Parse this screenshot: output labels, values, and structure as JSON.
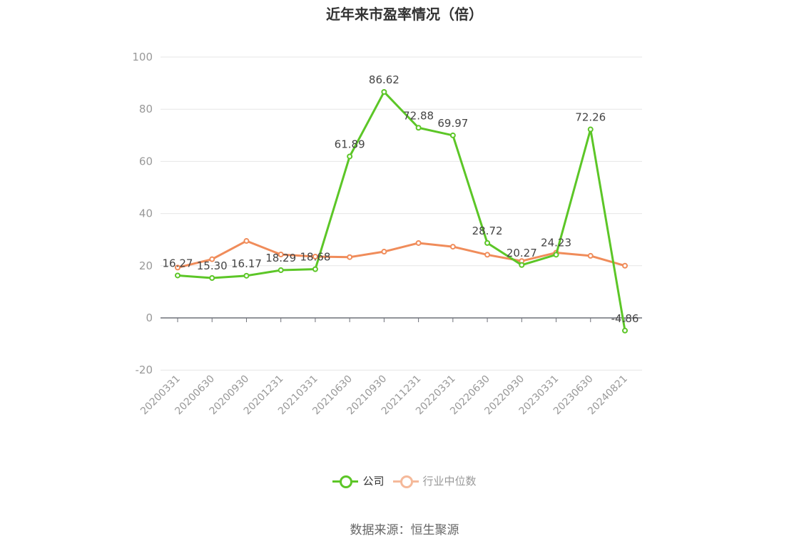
{
  "title": "近年来市盈率情况（倍）",
  "source": "数据来源：恒生聚源",
  "colors": {
    "company": "#5cc627",
    "industry": "#f08c5a",
    "industry_legend": "#f5b99a"
  },
  "chart_data": {
    "type": "line",
    "x": [
      "20200331",
      "20200630",
      "20200930",
      "20201231",
      "20210331",
      "20210630",
      "20210930",
      "20211231",
      "20220331",
      "20220630",
      "20220930",
      "20230331",
      "20230630",
      "20240821"
    ],
    "ylim": [
      -20,
      100
    ],
    "yticks": [
      -20,
      0,
      20,
      40,
      60,
      80,
      100
    ],
    "grid": true,
    "legend_position": "bottom",
    "series": [
      {
        "name": "公司",
        "values": [
          16.27,
          15.3,
          16.17,
          18.29,
          18.68,
          61.89,
          86.62,
          72.88,
          69.97,
          28.72,
          20.27,
          24.23,
          72.26,
          -4.86
        ],
        "labels": [
          "16.27",
          "15.30",
          "16.17",
          "18.29",
          "18.68",
          "61.89",
          "86.62",
          "72.88",
          "69.97",
          "28.72",
          "20.27",
          "24.23",
          "72.26",
          "-4.86"
        ]
      },
      {
        "name": "行业中位数",
        "values": [
          19.3,
          22.5,
          29.5,
          24.3,
          23.5,
          23.3,
          25.4,
          28.7,
          27.3,
          24.2,
          21.8,
          25.0,
          23.8,
          20.0
        ]
      }
    ]
  }
}
